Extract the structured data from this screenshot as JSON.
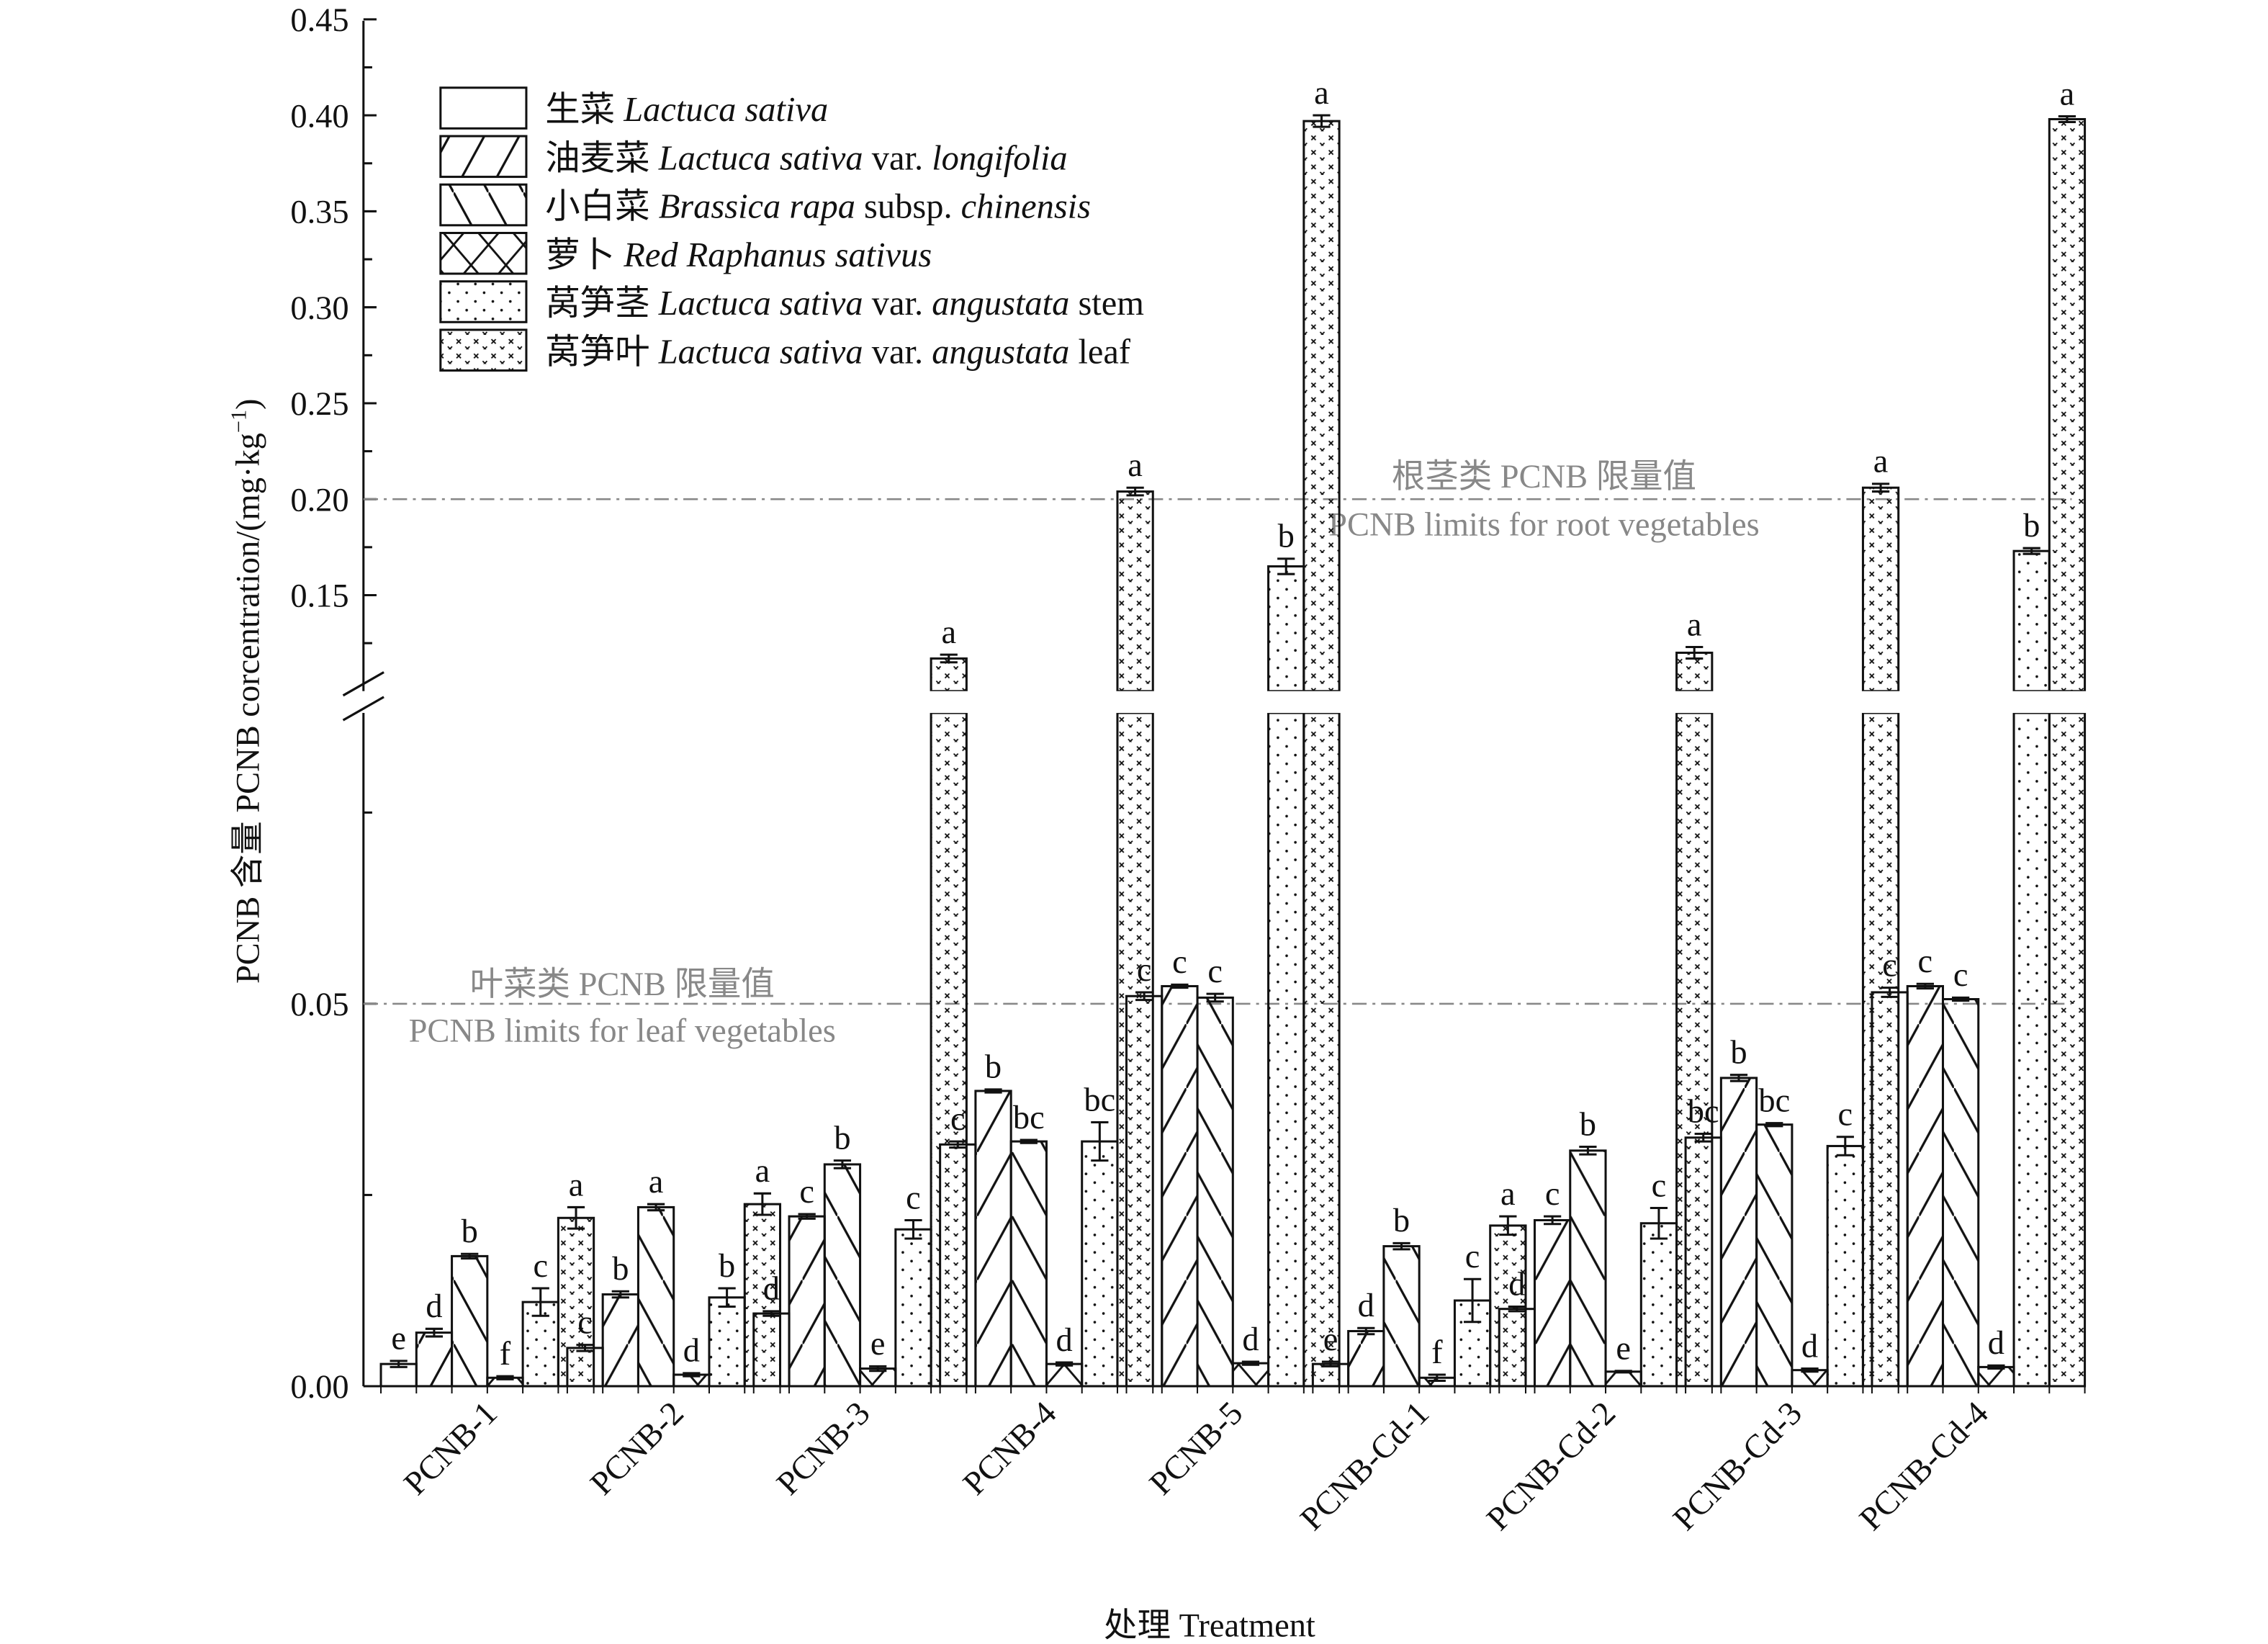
{
  "chart_data": {
    "type": "bar",
    "title": "",
    "xlabel": "处理 Treatment",
    "ylabel": "PCNB 含量 PCNB corcentration/(mg·kg⁻¹)",
    "ylabel_sup": "−1",
    "y_axis_break": {
      "lower_range": [
        0,
        0.09
      ],
      "upper_range": [
        0.1,
        0.45
      ]
    },
    "lower_tick_labels": [
      "0.00",
      "0.05"
    ],
    "upper_tick_labels": [
      "0.15",
      "0.20",
      "0.25",
      "0.30",
      "0.35",
      "0.40",
      "0.45"
    ],
    "categories": [
      "PCNB-1",
      "PCNB-2",
      "PCNB-3",
      "PCNB-4",
      "PCNB-5",
      "PCNB-Cd-1",
      "PCNB-Cd-2",
      "PCNB-Cd-3",
      "PCNB-Cd-4"
    ],
    "series": [
      {
        "name_cn": "生菜",
        "name_latin": "Lactuca sativa",
        "name_suffix": "",
        "pattern": "none",
        "values": [
          0.0029,
          0.005,
          0.0095,
          0.0316,
          0.051,
          0.0029,
          0.0101,
          0.0325,
          0.0515
        ],
        "errors": [
          0.0004,
          0.0004,
          0.0003,
          0.0004,
          0.0005,
          0.0003,
          0.0003,
          0.0005,
          0.0006
        ],
        "letters": [
          "e",
          "c",
          "d",
          "c",
          "c",
          "e",
          "d",
          "bc",
          "c"
        ]
      },
      {
        "name_cn": "油麦菜",
        "name_latin": "Lactuca sativa",
        "name_suffix": " var. ",
        "name_latin2": "longifolia",
        "pattern": "slash",
        "values": [
          0.007,
          0.012,
          0.0222,
          0.0386,
          0.0523,
          0.0072,
          0.0217,
          0.0403,
          0.0523
        ],
        "errors": [
          0.0005,
          0.0004,
          0.0003,
          0.0002,
          0.0002,
          0.0004,
          0.0005,
          0.0004,
          0.0003
        ],
        "letters": [
          "d",
          "b",
          "c",
          "b",
          "c",
          "d",
          "c",
          "b",
          "c"
        ]
      },
      {
        "name_cn": "小白菜",
        "name_latin": "Brassica rapa",
        "name_suffix": " subsp. ",
        "name_latin2": "chinensis",
        "pattern": "backslash",
        "values": [
          0.017,
          0.0234,
          0.029,
          0.032,
          0.0508,
          0.0183,
          0.0308,
          0.0342,
          0.0506
        ],
        "errors": [
          0.0003,
          0.0004,
          0.0005,
          0.0002,
          0.0005,
          0.0004,
          0.0005,
          0.0002,
          0.0002
        ],
        "letters": [
          "b",
          "a",
          "b",
          "bc",
          "c",
          "b",
          "b",
          "bc",
          "c"
        ]
      },
      {
        "name_cn": "萝卜",
        "name_latin": "Red Raphanus sativus",
        "name_suffix": "",
        "pattern": "cross",
        "values": [
          0.0011,
          0.0015,
          0.0023,
          0.0029,
          0.003,
          0.0011,
          0.0019,
          0.0021,
          0.0025
        ],
        "errors": [
          0.0002,
          0.0002,
          0.0003,
          0.0002,
          0.0002,
          0.0004,
          0.0001,
          0.0002,
          0.0002
        ],
        "letters": [
          "f",
          "d",
          "e",
          "d",
          "d",
          "f",
          "e",
          "d",
          "d"
        ]
      },
      {
        "name_cn": "莴笋茎",
        "name_latin": "Lactuca sativa",
        "name_suffix": " var. ",
        "name_latin2": "angustata",
        "name_tail": " stem",
        "pattern": "dots",
        "values": [
          0.011,
          0.0116,
          0.0205,
          0.032,
          0.165,
          0.0112,
          0.0213,
          0.0314,
          0.173
        ],
        "errors": [
          0.0018,
          0.0012,
          0.0012,
          0.0025,
          0.004,
          0.0028,
          0.002,
          0.0012,
          0.0015
        ],
        "letters": [
          "c",
          "b",
          "c",
          "bc",
          "b",
          "c",
          "c",
          "c",
          "b"
        ]
      },
      {
        "name_cn": "莴笋叶",
        "name_latin": "Lactuca sativa",
        "name_suffix": " var. ",
        "name_latin2": "angustata",
        "name_tail": " leaf",
        "pattern": "xs",
        "values": [
          0.022,
          0.0238,
          0.117,
          0.204,
          0.397,
          0.021,
          0.12,
          0.206,
          0.398
        ],
        "errors": [
          0.0014,
          0.0014,
          0.002,
          0.002,
          0.003,
          0.0012,
          0.003,
          0.002,
          0.0015
        ],
        "letters": [
          "a",
          "a",
          "a",
          "a",
          "a",
          "a",
          "a",
          "a",
          "a"
        ]
      }
    ],
    "reference_lines": [
      {
        "value": 0.2,
        "label_cn": "根茎类 PCNB 限量值",
        "label_en": "PCNB limits for root vegetables",
        "color": "#888888"
      },
      {
        "value": 0.05,
        "label_cn": "叶菜类 PCNB 限量值",
        "label_en": "PCNB limits for leaf vegetables",
        "color": "#888888"
      }
    ],
    "legend_position": "top-left",
    "grid": false
  }
}
